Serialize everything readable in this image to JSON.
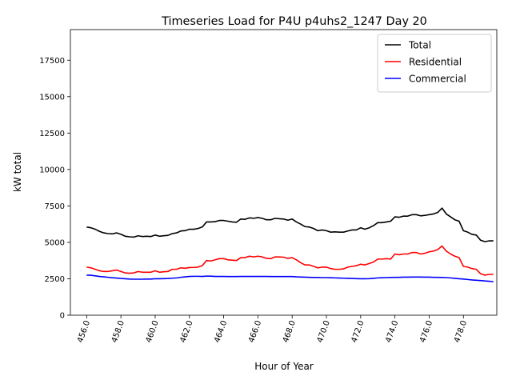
{
  "chart_data": {
    "type": "line",
    "title": "Timeseries Load for P4U p4uhs2_1247  Day 20",
    "xlabel": "Hour of Year",
    "ylabel": "kW total",
    "xlim": [
      455.05,
      479.95
    ],
    "ylim": [
      0,
      19600
    ],
    "xticks": [
      456,
      458,
      460,
      462,
      464,
      466,
      468,
      470,
      472,
      474,
      476,
      478
    ],
    "xtick_labels": [
      "456.0",
      "458.0",
      "460.0",
      "462.0",
      "464.0",
      "466.0",
      "468.0",
      "470.0",
      "472.0",
      "474.0",
      "476.0",
      "478.0"
    ],
    "yticks": [
      0,
      2500,
      5000,
      7500,
      10000,
      12500,
      15000,
      17500
    ],
    "ytick_labels": [
      "0",
      "2500",
      "5000",
      "7500",
      "10000",
      "12500",
      "15000",
      "17500"
    ],
    "legend_position": "top-right",
    "x": [
      456.0,
      456.25,
      456.5,
      456.75,
      457.0,
      457.25,
      457.5,
      457.75,
      458.0,
      458.25,
      458.5,
      458.75,
      459.0,
      459.25,
      459.5,
      459.75,
      460.0,
      460.25,
      460.5,
      460.75,
      461.0,
      461.25,
      461.5,
      461.75,
      462.0,
      462.25,
      462.5,
      462.75,
      463.0,
      463.25,
      463.5,
      463.75,
      464.0,
      464.25,
      464.5,
      464.75,
      465.0,
      465.25,
      465.5,
      465.75,
      466.0,
      466.25,
      466.5,
      466.75,
      467.0,
      467.25,
      467.5,
      467.75,
      468.0,
      468.25,
      468.5,
      468.75,
      469.0,
      469.25,
      469.5,
      469.75,
      470.0,
      470.25,
      470.5,
      470.75,
      471.0,
      471.25,
      471.5,
      471.75,
      472.0,
      472.25,
      472.5,
      472.75,
      473.0,
      473.25,
      473.5,
      473.75,
      474.0,
      474.25,
      474.5,
      474.75,
      475.0,
      475.25,
      475.5,
      475.75,
      476.0,
      476.25,
      476.5,
      476.75,
      477.0,
      477.25,
      477.5,
      477.75,
      478.0,
      478.25,
      478.5,
      478.75,
      479.0,
      479.25,
      479.5,
      479.75
    ],
    "series": [
      {
        "name": "Total",
        "color": "#000000",
        "values": [
          6050,
          6000,
          5900,
          5750,
          5650,
          5600,
          5580,
          5650,
          5550,
          5420,
          5380,
          5360,
          5450,
          5400,
          5420,
          5400,
          5500,
          5420,
          5450,
          5480,
          5600,
          5650,
          5780,
          5800,
          5900,
          5900,
          5950,
          6050,
          6400,
          6400,
          6420,
          6500,
          6500,
          6450,
          6400,
          6380,
          6600,
          6580,
          6680,
          6650,
          6700,
          6650,
          6550,
          6550,
          6650,
          6620,
          6600,
          6520,
          6600,
          6400,
          6250,
          6080,
          6050,
          5950,
          5800,
          5850,
          5800,
          5700,
          5720,
          5700,
          5700,
          5780,
          5850,
          5850,
          6000,
          5900,
          6000,
          6150,
          6350,
          6350,
          6400,
          6450,
          6750,
          6720,
          6800,
          6800,
          6900,
          6900,
          6820,
          6850,
          6900,
          6950,
          7050,
          7350,
          6950,
          6750,
          6550,
          6450,
          5800,
          5700,
          5550,
          5500,
          5150,
          5050,
          5100,
          5100
        ]
      },
      {
        "name": "Residential",
        "color": "#ff0000",
        "values": [
          3300,
          3250,
          3150,
          3050,
          3000,
          3000,
          3050,
          3100,
          3000,
          2900,
          2880,
          2900,
          3000,
          2950,
          2950,
          2950,
          3050,
          2950,
          2980,
          3000,
          3150,
          3150,
          3250,
          3220,
          3270,
          3280,
          3300,
          3400,
          3750,
          3720,
          3800,
          3880,
          3880,
          3800,
          3780,
          3750,
          3950,
          3950,
          4050,
          4000,
          4050,
          4000,
          3900,
          3880,
          4000,
          4000,
          3980,
          3900,
          3950,
          3800,
          3600,
          3450,
          3450,
          3350,
          3250,
          3300,
          3300,
          3200,
          3150,
          3150,
          3180,
          3300,
          3350,
          3400,
          3500,
          3450,
          3550,
          3650,
          3850,
          3850,
          3880,
          3850,
          4200,
          4150,
          4200,
          4200,
          4300,
          4300,
          4200,
          4250,
          4350,
          4400,
          4500,
          4750,
          4400,
          4200,
          4050,
          3950,
          3350,
          3300,
          3200,
          3150,
          2850,
          2750,
          2800,
          2800
        ]
      },
      {
        "name": "Commercial",
        "color": "#0000ff",
        "values": [
          2750,
          2740,
          2700,
          2660,
          2630,
          2600,
          2570,
          2550,
          2520,
          2500,
          2480,
          2470,
          2470,
          2470,
          2480,
          2480,
          2500,
          2500,
          2510,
          2520,
          2540,
          2560,
          2600,
          2630,
          2660,
          2670,
          2670,
          2660,
          2680,
          2680,
          2660,
          2660,
          2660,
          2650,
          2650,
          2650,
          2660,
          2660,
          2660,
          2660,
          2660,
          2660,
          2660,
          2650,
          2650,
          2650,
          2650,
          2650,
          2650,
          2630,
          2620,
          2610,
          2600,
          2590,
          2590,
          2580,
          2580,
          2570,
          2560,
          2550,
          2540,
          2530,
          2520,
          2510,
          2500,
          2500,
          2510,
          2530,
          2560,
          2570,
          2580,
          2590,
          2600,
          2600,
          2610,
          2610,
          2620,
          2620,
          2620,
          2610,
          2610,
          2600,
          2600,
          2590,
          2580,
          2560,
          2530,
          2500,
          2480,
          2450,
          2420,
          2400,
          2380,
          2350,
          2330,
          2300
        ]
      }
    ]
  }
}
